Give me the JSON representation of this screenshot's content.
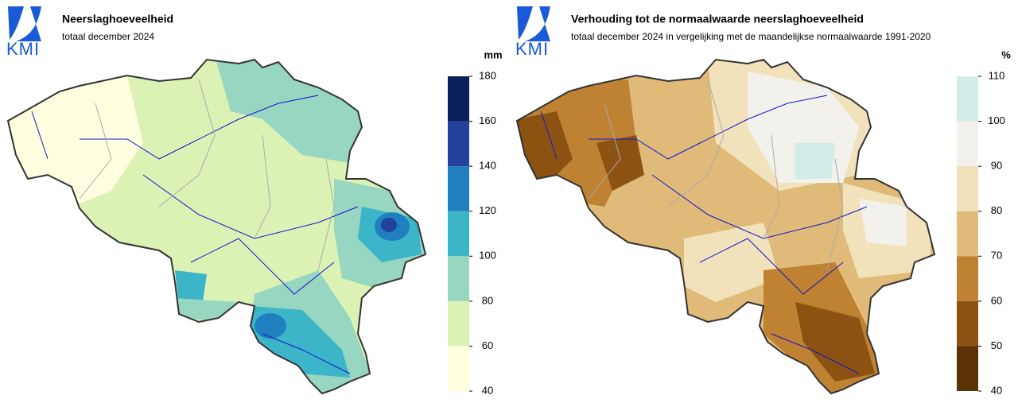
{
  "panels": [
    {
      "logo": "KMI",
      "title": "Neerslaghoeveelheid",
      "subtitle": "totaal december 2024",
      "unit": "mm",
      "ticks": [
        180,
        160,
        140,
        120,
        100,
        80,
        60,
        40
      ],
      "colors": [
        "#0b1f5c",
        "#22419a",
        "#1f7fbf",
        "#3cb5c9",
        "#97d6c0",
        "#dcf2b4",
        "#ffffe0"
      ]
    },
    {
      "logo": "KMI",
      "title": "Verhouding tot de normaalwaarde neerslaghoeveelheid",
      "subtitle": "totaal december 2024 in vergelijking met de maandelijkse normaalwaarde 1991-2020",
      "unit": "%",
      "ticks": [
        110,
        100,
        90,
        80,
        70,
        60,
        50,
        40
      ],
      "colors": [
        "#d2ece8",
        "#f3f1ec",
        "#f1e2bb",
        "#dfba78",
        "#bf8132",
        "#8c5212",
        "#5a3205"
      ]
    }
  ]
}
